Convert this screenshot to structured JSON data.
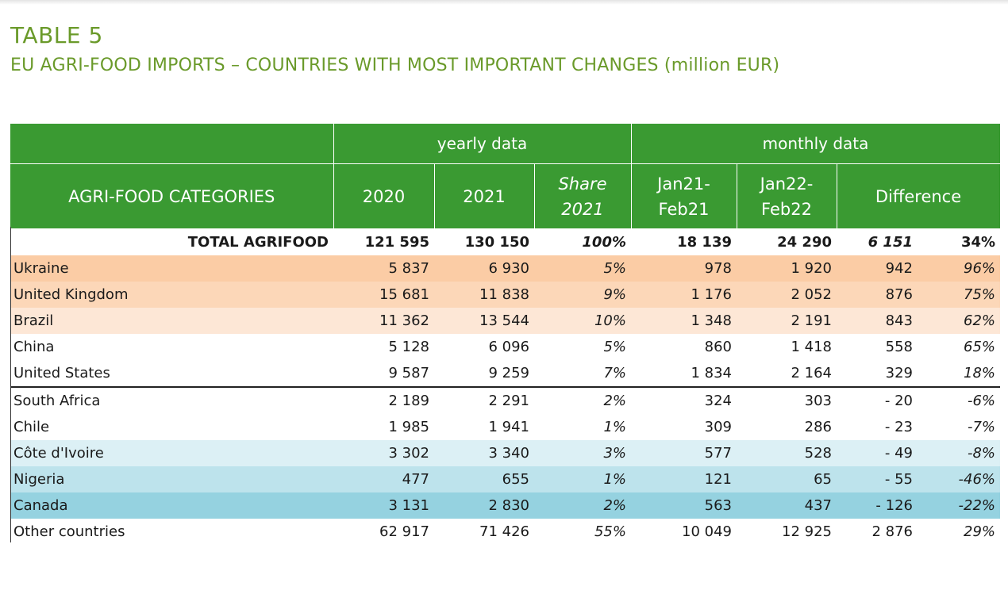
{
  "header": {
    "label": "TABLE 5",
    "subtitle": "EU AGRI-FOOD IMPORTS – COUNTRIES WITH MOST IMPORTANT CHANGES (million EUR)"
  },
  "columns": {
    "group_yearly": "yearly data",
    "group_monthly": "monthly data",
    "categories": "AGRI-FOOD CATEGORIES",
    "y2020": "2020",
    "y2021": "2021",
    "share_line1": "Share",
    "share_line2": "2021",
    "m1_line1": "Jan21-",
    "m1_line2": "Feb21",
    "m2_line1": "Jan22-",
    "m2_line2": "Feb22",
    "difference": "Difference"
  },
  "colors": {
    "header_green": "#3a9a32",
    "title_green": "#6a9a2a"
  },
  "rows": [
    {
      "name": "TOTAL AGRIFOOD",
      "y2020": "121 595",
      "y2021": "130 150",
      "share": "100%",
      "m1": "18 139",
      "m2": "24 290",
      "diff": "6 151",
      "pct": "34%"
    },
    {
      "name": "Ukraine",
      "y2020": "5 837",
      "y2021": "6 930",
      "share": "5%",
      "m1": "978",
      "m2": "1 920",
      "diff": "942",
      "pct": "96%"
    },
    {
      "name": "United Kingdom",
      "y2020": "15 681",
      "y2021": "11 838",
      "share": "9%",
      "m1": "1 176",
      "m2": "2 052",
      "diff": "876",
      "pct": "75%"
    },
    {
      "name": "Brazil",
      "y2020": "11 362",
      "y2021": "13 544",
      "share": "10%",
      "m1": "1 348",
      "m2": "2 191",
      "diff": "843",
      "pct": "62%"
    },
    {
      "name": "China",
      "y2020": "5 128",
      "y2021": "6 096",
      "share": "5%",
      "m1": "860",
      "m2": "1 418",
      "diff": "558",
      "pct": "65%"
    },
    {
      "name": "United States",
      "y2020": "9 587",
      "y2021": "9 259",
      "share": "7%",
      "m1": "1 834",
      "m2": "2 164",
      "diff": "329",
      "pct": "18%"
    },
    {
      "name": "South Africa",
      "y2020": "2 189",
      "y2021": "2 291",
      "share": "2%",
      "m1": "324",
      "m2": "303",
      "diff": "- 20",
      "pct": "-6%"
    },
    {
      "name": "Chile",
      "y2020": "1 985",
      "y2021": "1 941",
      "share": "1%",
      "m1": "309",
      "m2": "286",
      "diff": "- 23",
      "pct": "-7%"
    },
    {
      "name": "Côte d'Ivoire",
      "y2020": "3 302",
      "y2021": "3 340",
      "share": "3%",
      "m1": "577",
      "m2": "528",
      "diff": "- 49",
      "pct": "-8%"
    },
    {
      "name": "Nigeria",
      "y2020": "477",
      "y2021": "655",
      "share": "1%",
      "m1": "121",
      "m2": "65",
      "diff": "- 55",
      "pct": "-46%"
    },
    {
      "name": "Canada",
      "y2020": "3 131",
      "y2021": "2 830",
      "share": "2%",
      "m1": "563",
      "m2": "437",
      "diff": "- 126",
      "pct": "-22%"
    },
    {
      "name": "Other countries",
      "y2020": "62 917",
      "y2021": "71 426",
      "share": "55%",
      "m1": "10 049",
      "m2": "12 925",
      "diff": "2 876",
      "pct": "29%"
    }
  ]
}
